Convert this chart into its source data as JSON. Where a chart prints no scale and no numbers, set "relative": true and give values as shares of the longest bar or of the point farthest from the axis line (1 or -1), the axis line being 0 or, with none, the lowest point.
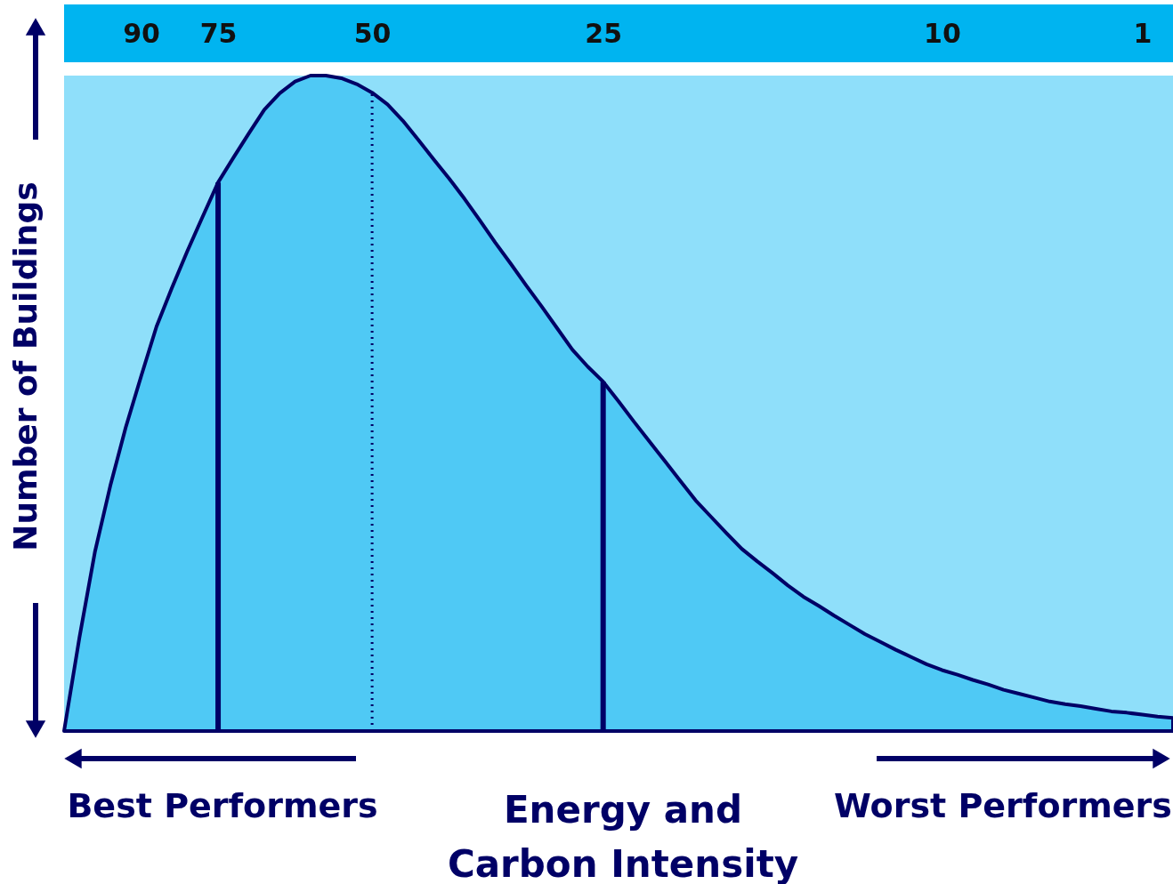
{
  "chart_data": {
    "type": "area",
    "relative": true,
    "ylabel": "Number of Buildings",
    "xlabel": "Energy and\nCarbon Intensity",
    "categories": [
      null,
      null,
      null,
      null,
      null,
      "90",
      null,
      null,
      null,
      null,
      "75",
      null,
      null,
      null,
      null,
      null,
      null,
      null,
      null,
      null,
      "50",
      null,
      null,
      null,
      null,
      null,
      null,
      null,
      null,
      null,
      null,
      null,
      null,
      null,
      null,
      "25",
      null,
      null,
      null,
      null,
      null,
      null,
      null,
      null,
      null,
      null,
      null,
      null,
      null,
      null,
      null,
      null,
      null,
      null,
      null,
      null,
      null,
      "10",
      null,
      null,
      null,
      null,
      null,
      null,
      null,
      null,
      null,
      null,
      null,
      null,
      "1",
      null,
      null
    ],
    "tick_labels": "x",
    "grid": false,
    "series": [
      {
        "color": "#4fc9f5",
        "values": [
          0,
          0.143,
          0.273,
          0.374,
          0.463,
          0.541,
          0.617,
          0.676,
          0.732,
          0.785,
          0.837,
          0.875,
          0.912,
          0.948,
          0.973,
          0.991,
          1,
          1,
          0.996,
          0.987,
          0.974,
          0.956,
          0.931,
          0.902,
          0.872,
          0.843,
          0.812,
          0.779,
          0.745,
          0.713,
          0.68,
          0.648,
          0.615,
          0.582,
          0.556,
          0.533,
          0.503,
          0.472,
          0.442,
          0.412,
          0.382,
          0.352,
          0.327,
          0.302,
          0.278,
          0.259,
          0.241,
          0.222,
          0.205,
          0.191,
          0.176,
          0.162,
          0.148,
          0.136,
          0.124,
          0.113,
          0.102,
          0.093,
          0.086,
          0.078,
          0.071,
          0.063,
          0.057,
          0.051,
          0.045,
          0.041,
          0.038,
          0.034,
          0.03,
          0.028,
          0.025,
          0.022,
          0.02
        ]
      }
    ],
    "ref_lines": [
      {
        "axis": "x",
        "value": "75",
        "color": "#000066",
        "line_style": "solid"
      },
      {
        "axis": "x",
        "value": "50",
        "color": "#000066",
        "line_style": "dotted"
      },
      {
        "axis": "x",
        "value": "25",
        "color": "#000066",
        "line_style": "solid"
      }
    ],
    "annotations": [
      "Best Performers",
      "Worst Performers"
    ]
  }
}
